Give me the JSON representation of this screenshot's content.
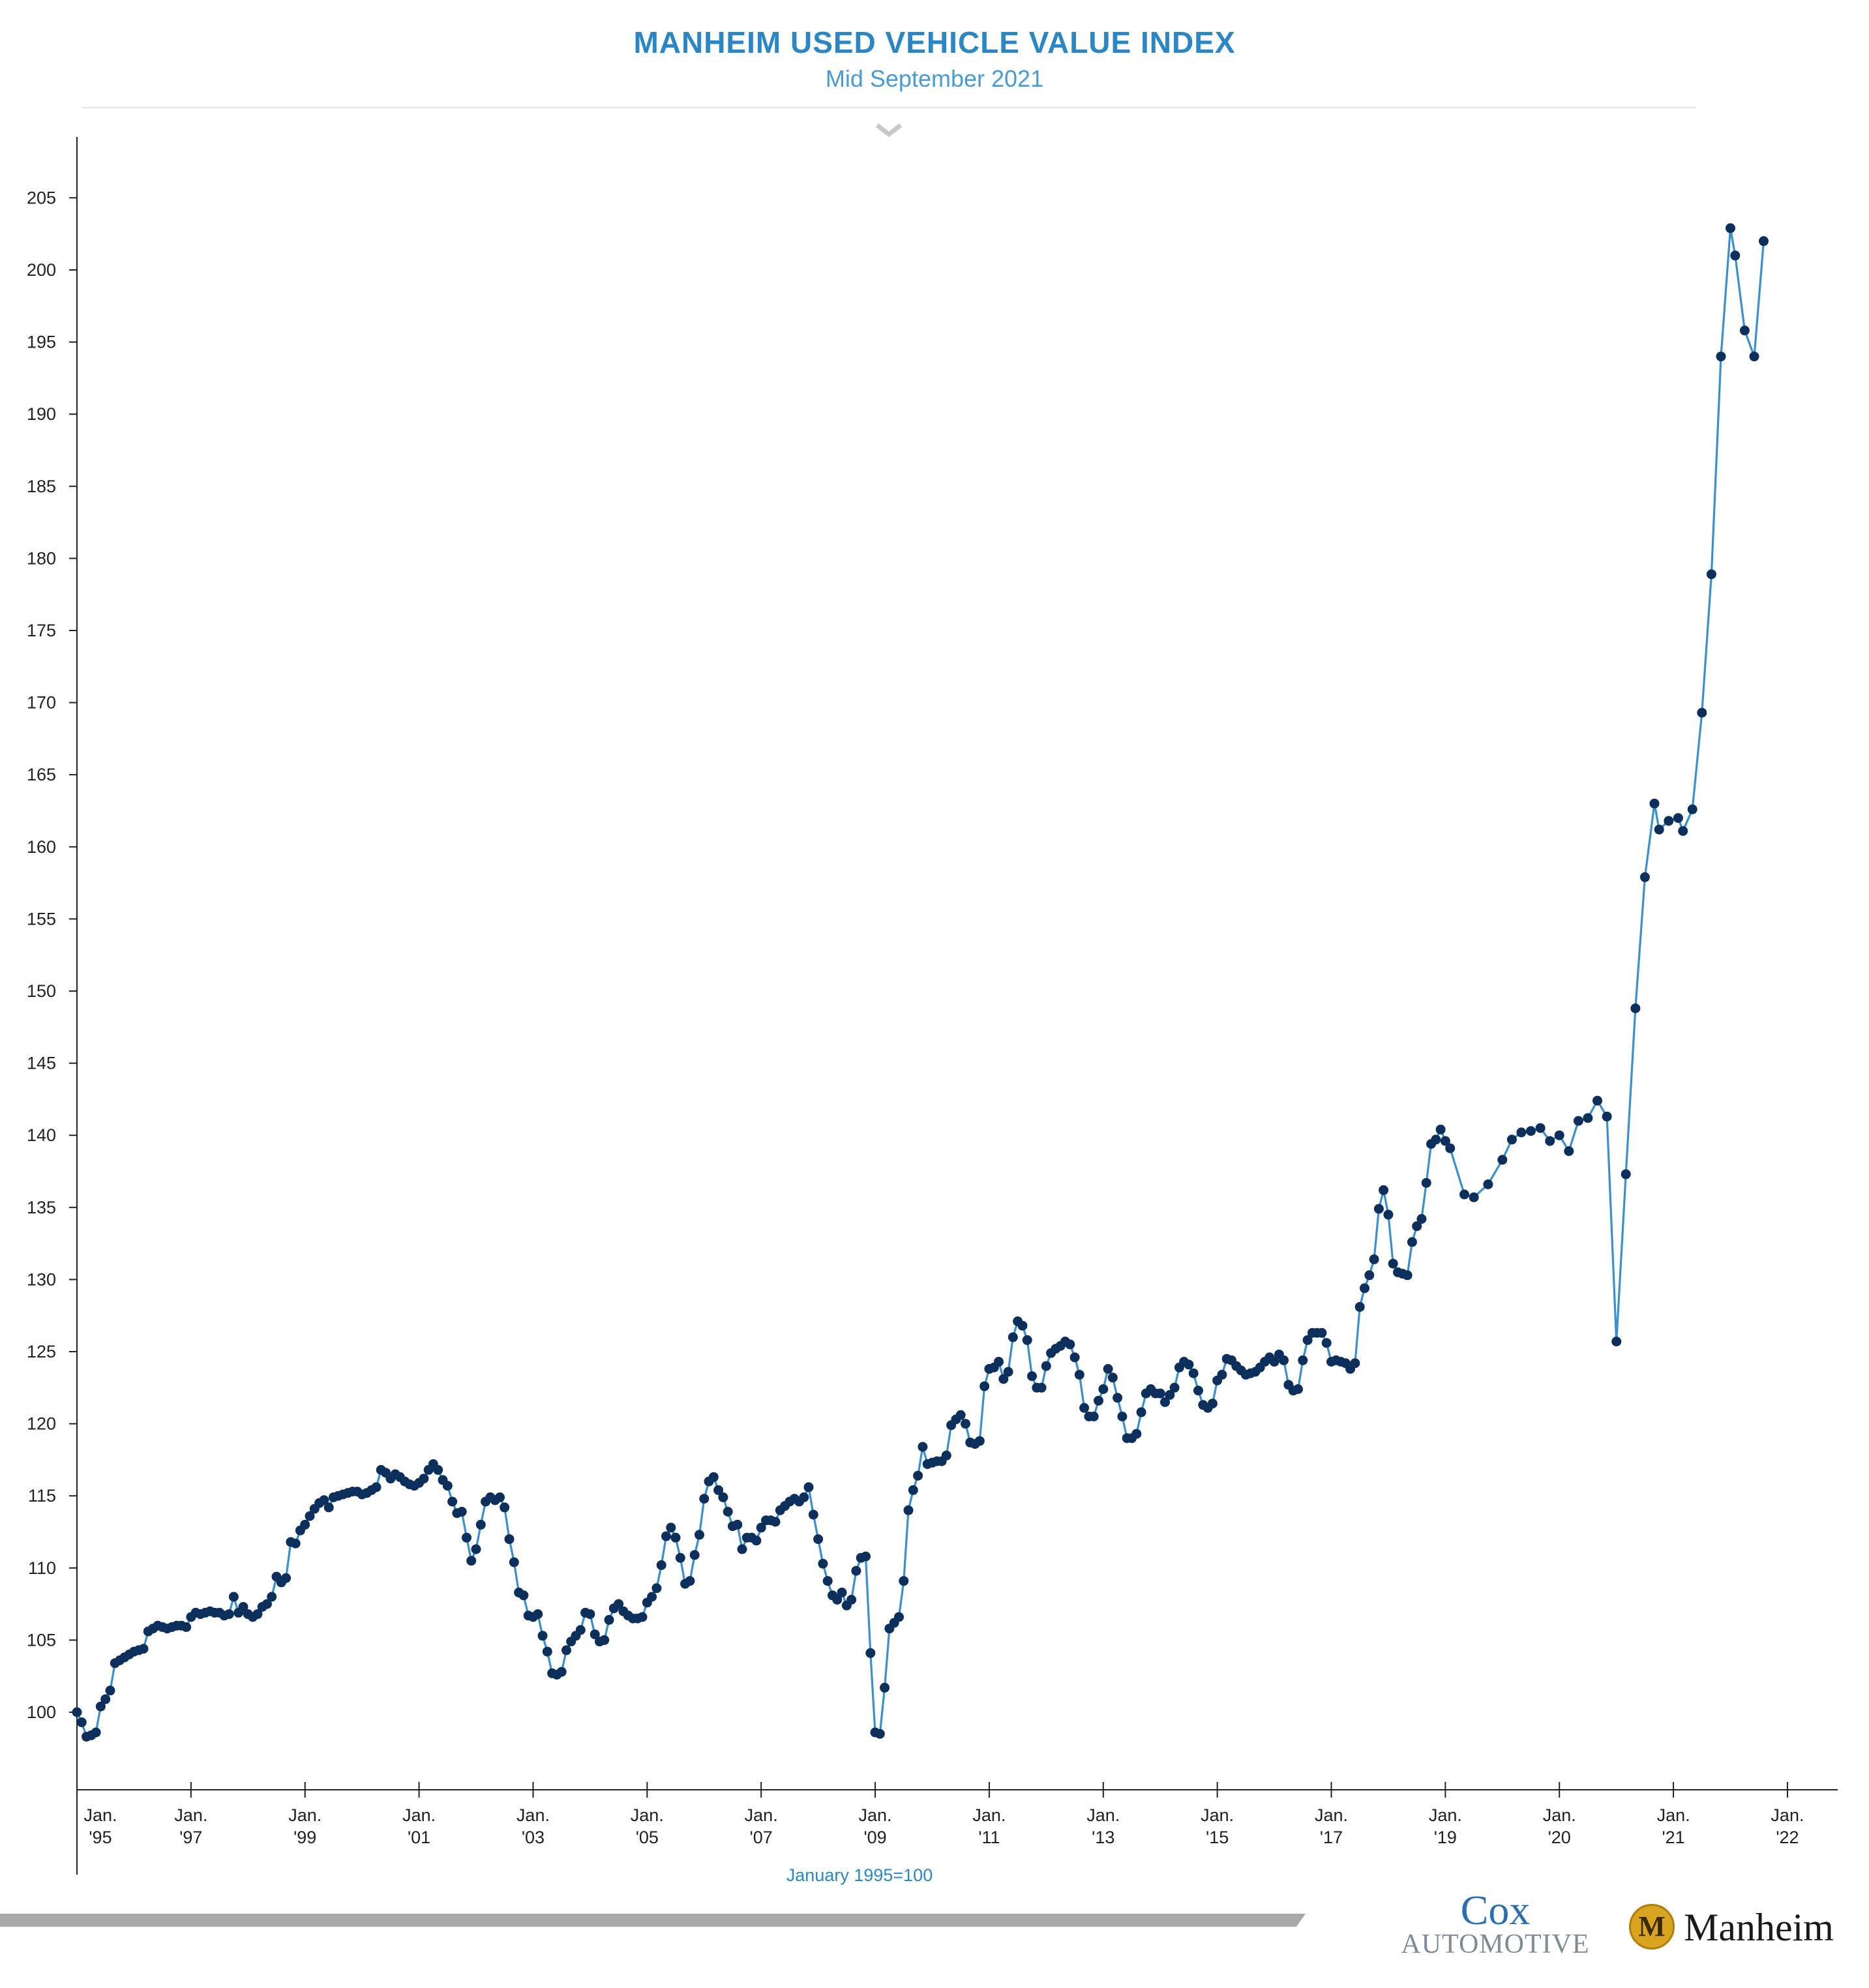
{
  "header": {
    "title": "MANHEIM USED VEHICLE VALUE INDEX",
    "subtitle": "Mid September 2021"
  },
  "footer": {
    "note": "January 1995=100",
    "logo_cox_top": "Cox",
    "logo_cox_bottom": "AUTOMOTIVE",
    "logo_manheim": "Manheim",
    "logo_manheim_badge": "M"
  },
  "colors": {
    "title": "#2b86c5",
    "line": "#3a8fd0",
    "marker": "#0d2f5c",
    "axis": "#222222",
    "footer_bar": "#a9a9ab"
  },
  "chart_data": {
    "type": "line",
    "title": "MANHEIM USED VEHICLE VALUE INDEX",
    "subtitle": "Mid September 2021",
    "xlabel": "January 1995=100",
    "ylabel": "",
    "ylim": [
      94.5,
      205
    ],
    "y_ticks": [
      100,
      105,
      110,
      115,
      120,
      125,
      130,
      135,
      140,
      145,
      150,
      155,
      160,
      165,
      170,
      175,
      180,
      185,
      190,
      195,
      200,
      205
    ],
    "x_ticks": [
      {
        "month": 0,
        "label": [
          "Jan.",
          "'95"
        ]
      },
      {
        "month": 24,
        "label": [
          "Jan.",
          "'97"
        ]
      },
      {
        "month": 48,
        "label": [
          "Jan.",
          "'99"
        ]
      },
      {
        "month": 72,
        "label": [
          "Jan.",
          "'01"
        ]
      },
      {
        "month": 96,
        "label": [
          "Jan.",
          "'03"
        ]
      },
      {
        "month": 120,
        "label": [
          "Jan.",
          "'05"
        ]
      },
      {
        "month": 144,
        "label": [
          "Jan.",
          "'07"
        ]
      },
      {
        "month": 168,
        "label": [
          "Jan.",
          "'09"
        ]
      },
      {
        "month": 192,
        "label": [
          "Jan.",
          "'11"
        ]
      },
      {
        "month": 216,
        "label": [
          "Jan.",
          "'13"
        ]
      },
      {
        "month": 240,
        "label": [
          "Jan.",
          "'15"
        ]
      },
      {
        "month": 264,
        "label": [
          "Jan.",
          "'17"
        ]
      },
      {
        "month": 288,
        "label": [
          "Jan.",
          "'19"
        ]
      },
      {
        "month": 312,
        "label": [
          "Jan.",
          "'20"
        ]
      },
      {
        "month": 336,
        "label": [
          "Jan.",
          "'21"
        ]
      },
      {
        "month": 360,
        "label": [
          "Jan.",
          "'22"
        ]
      }
    ],
    "x_start": "Jan. 1995",
    "series": [
      {
        "values": [
          100.0,
          99.3,
          98.3,
          98.4,
          98.6,
          100.4,
          100.9,
          101.5,
          103.4,
          103.6,
          103.8,
          104.0,
          104.2,
          104.3,
          104.4,
          105.6,
          105.8,
          106.0,
          105.9,
          105.8,
          105.9,
          106.0,
          106.0,
          105.9,
          106.6,
          106.9,
          106.8,
          106.9,
          107.0,
          106.9,
          106.9,
          106.7,
          106.8,
          108.0,
          106.9,
          107.3,
          106.8,
          106.6,
          106.8,
          107.3,
          107.5,
          108.0,
          109.4,
          109.0,
          109.3,
          111.8,
          111.7,
          112.6,
          113.0,
          113.6,
          114.1,
          114.5,
          114.7,
          114.2,
          114.9,
          115.0,
          115.1,
          115.2,
          115.3,
          115.3,
          115.1,
          115.2,
          115.4,
          115.6,
          116.8,
          116.6,
          116.2,
          116.5,
          116.3,
          116.0,
          115.8,
          115.7,
          115.9,
          116.2,
          116.8,
          117.2,
          116.8,
          116.1,
          115.7,
          114.6,
          113.8,
          113.9,
          112.1,
          110.5,
          111.3,
          113.0,
          114.6,
          114.9,
          114.7,
          114.9,
          114.2,
          112.0,
          110.4,
          108.3,
          108.1,
          106.7,
          106.6,
          106.8,
          105.3,
          104.2,
          102.7,
          102.6,
          102.8,
          104.3,
          104.9,
          105.3,
          105.7,
          106.9,
          106.8,
          105.4,
          104.9,
          105.0,
          106.4,
          107.2,
          107.5,
          107.0,
          106.7,
          106.5,
          106.5,
          106.6,
          107.6,
          108.0,
          108.6,
          110.2,
          112.2,
          112.8,
          112.1,
          110.7,
          108.9,
          109.1,
          110.9,
          112.3,
          114.8,
          116.0,
          116.3,
          115.4,
          114.9,
          113.9,
          112.9,
          113.0,
          111.3,
          112.1,
          112.1,
          111.9,
          112.8,
          113.3,
          113.3,
          113.2,
          114.0,
          114.3,
          114.6,
          114.8,
          114.6,
          114.9,
          115.6,
          113.7,
          112.0,
          110.3,
          109.1,
          108.1,
          107.8,
          108.3,
          107.4,
          107.8,
          109.8,
          110.7,
          110.8,
          104.1,
          98.6,
          98.5,
          101.7,
          105.8,
          106.2,
          106.6,
          109.1,
          114.0,
          115.4,
          116.4,
          118.4,
          117.2,
          117.3,
          117.4,
          117.4,
          117.8,
          119.9,
          120.3,
          120.6,
          120.0,
          118.7,
          118.6,
          118.8,
          122.6,
          123.8,
          123.9,
          124.3,
          123.1,
          123.6,
          126.0,
          127.1,
          126.8,
          125.8,
          123.3,
          122.5,
          122.5,
          124.0,
          124.9,
          125.2,
          125.4,
          125.7,
          125.5,
          124.6,
          123.4,
          121.1,
          120.5,
          120.5,
          121.6,
          122.4,
          123.8,
          123.2,
          121.8,
          120.5,
          119.0,
          119.0,
          119.3,
          120.8,
          122.1,
          122.4,
          122.1,
          122.1,
          121.5,
          122.0,
          122.5,
          123.9,
          124.3,
          124.1,
          123.5,
          122.3,
          121.3,
          121.1,
          121.4,
          123.0,
          123.4,
          124.5,
          124.4,
          124.0,
          123.7,
          123.4,
          123.5,
          123.6,
          123.9,
          124.3,
          124.6,
          124.3,
          124.8,
          124.4,
          122.7,
          122.3,
          122.4,
          124.4,
          125.8,
          126.3,
          126.3,
          126.3,
          125.6,
          124.3,
          124.4,
          124.3,
          124.2,
          123.8,
          124.2,
          128.1,
          129.4,
          130.3,
          131.4,
          134.9,
          136.2,
          134.5,
          131.1,
          130.5,
          130.4,
          130.3,
          132.6,
          133.7,
          134.2,
          136.7,
          139.4,
          139.7,
          140.4,
          139.6,
          139.1
        ],
        "x_start_month": 0
      },
      {
        "x": [
          292,
          295,
          298,
          301,
          304,
          307,
          310,
          313,
          316,
          319,
          322,
          325,
          328,
          331,
          334,
          337,
          340,
          343,
          346,
          349,
          352,
          355,
          358
        ],
        "values_raw": "sparse"
      }
    ]
  }
}
